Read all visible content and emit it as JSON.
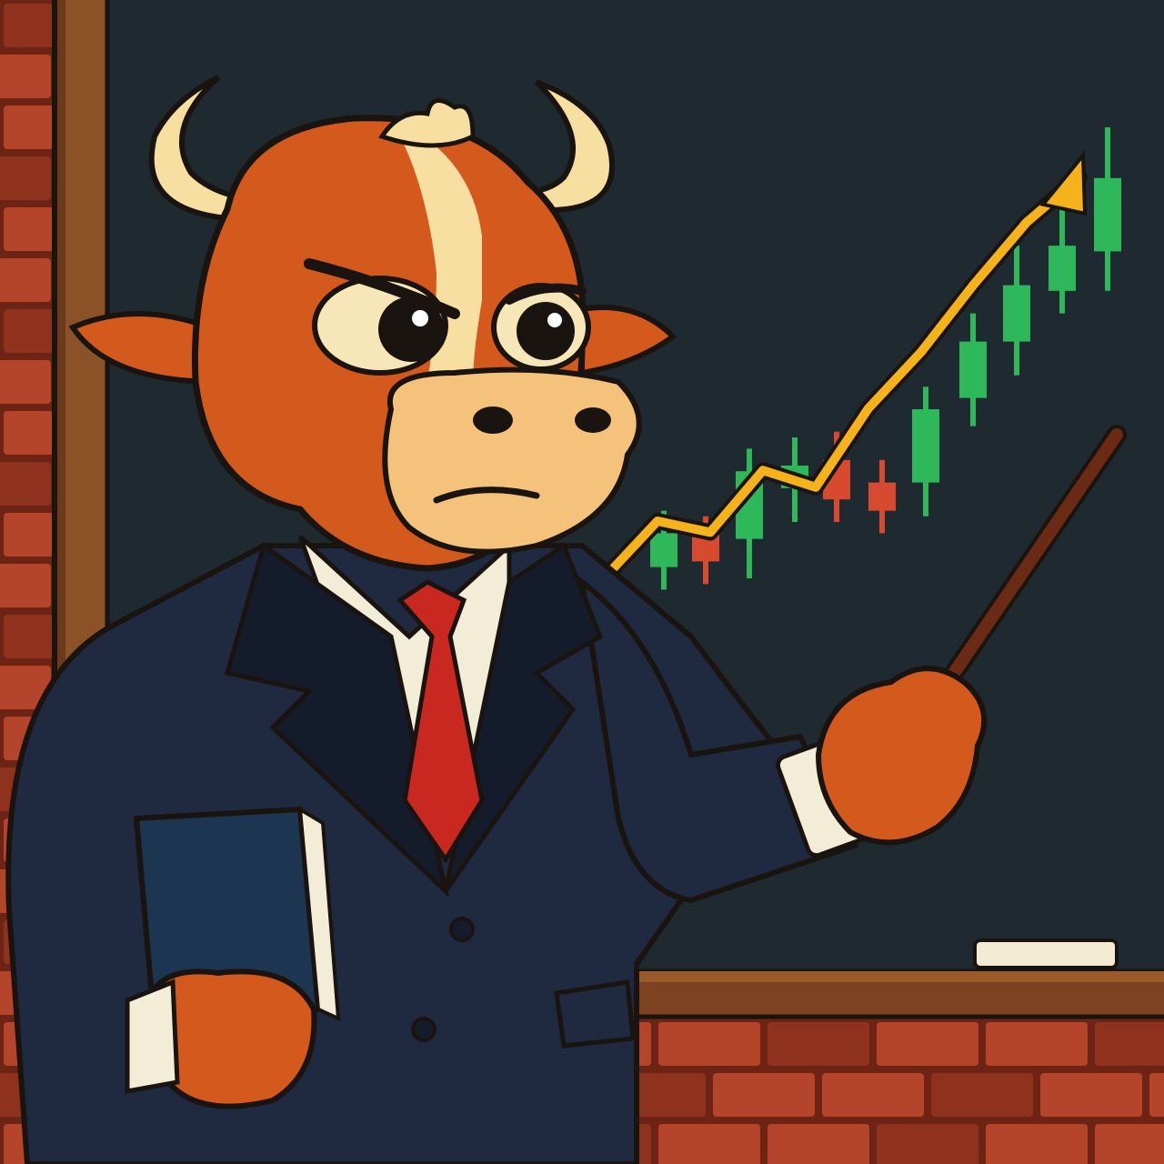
{
  "scene": {
    "subject": "bull-teacher",
    "colors": {
      "brick": "#b5452a",
      "brick_dark": "#8e321d",
      "mortar": "#6e2414",
      "board": "#1e2a30",
      "frame": "#6b3a1a",
      "frame_light": "#8a5226",
      "bull_fur": "#d35a1c",
      "bull_fur_dark": "#a94412",
      "horn": "#f6dfa0",
      "muzzle": "#f4c27a",
      "suit": "#1f2a40",
      "suit_dark": "#141c2c",
      "shirt": "#f3ecd6",
      "tie": "#c8281f",
      "book": "#1c3550",
      "pointer": "#6b2a14",
      "chalk": "#f4ecd2",
      "trend": "#f6b21a",
      "candle_up": "#2fb85a",
      "candle_down": "#d84a30",
      "outline": "#1a1410"
    }
  },
  "chart_data": {
    "type": "candlestick",
    "trend_line": {
      "color": "#f6b21a",
      "points": [
        [
          0,
          0
        ],
        [
          1,
          1
        ],
        [
          2,
          0.8
        ],
        [
          3,
          1.9
        ],
        [
          4,
          1.6
        ],
        [
          5,
          3.0
        ],
        [
          6,
          4.0
        ],
        [
          7,
          5.2
        ],
        [
          8,
          6.3
        ],
        [
          9,
          7.1
        ]
      ]
    },
    "candles": [
      {
        "open": 2.2,
        "close": 2.8,
        "low": 1.8,
        "high": 3.2,
        "dir": "up"
      },
      {
        "open": 2.9,
        "close": 2.3,
        "low": 1.9,
        "high": 3.1,
        "dir": "down"
      },
      {
        "open": 2.7,
        "close": 3.9,
        "low": 2.0,
        "high": 4.3,
        "dir": "up"
      },
      {
        "open": 3.6,
        "close": 4.0,
        "low": 3.0,
        "high": 4.5,
        "dir": "up"
      },
      {
        "open": 4.1,
        "close": 3.4,
        "low": 3.0,
        "high": 4.6,
        "dir": "down"
      },
      {
        "open": 3.7,
        "close": 3.2,
        "low": 2.8,
        "high": 4.1,
        "dir": "down"
      },
      {
        "open": 3.7,
        "close": 5.0,
        "low": 3.1,
        "high": 5.4,
        "dir": "up"
      },
      {
        "open": 5.2,
        "close": 6.2,
        "low": 4.7,
        "high": 6.7,
        "dir": "up"
      },
      {
        "open": 6.2,
        "close": 7.2,
        "low": 5.6,
        "high": 7.9,
        "dir": "up"
      },
      {
        "open": 7.1,
        "close": 7.9,
        "low": 6.7,
        "high": 8.7,
        "dir": "up"
      },
      {
        "open": 7.8,
        "close": 9.1,
        "low": 7.1,
        "high": 10.0,
        "dir": "up"
      }
    ]
  }
}
